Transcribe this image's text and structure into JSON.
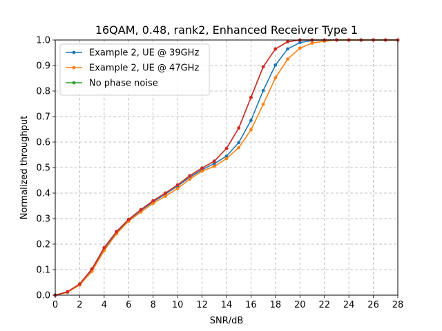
{
  "chart_data": {
    "type": "line",
    "title": "16QAM, 0.48, rank2, Enhanced Receiver Type 1",
    "xlabel": "SNR/dB",
    "ylabel": "Normalized throughput",
    "xlim": [
      0,
      28
    ],
    "ylim": [
      0,
      1.0
    ],
    "xticks": [
      0,
      2,
      4,
      6,
      8,
      10,
      12,
      14,
      16,
      18,
      20,
      22,
      24,
      26,
      28
    ],
    "yticks": [
      0.0,
      0.1,
      0.2,
      0.3,
      0.4,
      0.5,
      0.6,
      0.7,
      0.8,
      0.9,
      1.0
    ],
    "xtick_labels": [
      "0",
      "2",
      "4",
      "6",
      "8",
      "10",
      "12",
      "14",
      "16",
      "18",
      "20",
      "22",
      "24",
      "26",
      "28"
    ],
    "ytick_labels": [
      "0.0",
      "0.1",
      "0.2",
      "0.3",
      "0.4",
      "0.5",
      "0.6",
      "0.7",
      "0.8",
      "0.9",
      "1.0"
    ],
    "grid": true,
    "legend_position": "upper-left",
    "x": [
      0,
      1,
      2,
      3,
      4,
      5,
      6,
      7,
      8,
      9,
      10,
      11,
      12,
      13,
      14,
      15,
      16,
      17,
      18,
      19,
      20,
      21,
      22,
      23,
      24,
      25,
      26,
      27,
      28
    ],
    "series": [
      {
        "name": "Example 2, UE @ 39GHz",
        "color": "#1f77b4",
        "values": [
          0.0,
          0.012,
          0.042,
          0.1,
          0.182,
          0.245,
          0.294,
          0.332,
          0.366,
          0.396,
          0.428,
          0.462,
          0.492,
          0.515,
          0.545,
          0.598,
          0.685,
          0.802,
          0.902,
          0.965,
          0.99,
          0.998,
          1.0,
          1.0,
          1.0,
          1.0,
          1.0,
          1.0,
          1.0
        ]
      },
      {
        "name": "Example 2, UE @ 47GHz",
        "color": "#ff7f0e",
        "values": [
          0.0,
          0.011,
          0.04,
          0.093,
          0.175,
          0.24,
          0.29,
          0.326,
          0.36,
          0.388,
          0.418,
          0.455,
          0.486,
          0.505,
          0.535,
          0.578,
          0.648,
          0.748,
          0.852,
          0.925,
          0.968,
          0.988,
          0.995,
          1.0,
          1.0,
          1.0,
          1.0,
          1.0,
          1.0
        ]
      },
      {
        "name": "No phase noise",
        "color": "#2ca02c",
        "values": [
          0.0,
          0.013,
          0.044,
          0.103,
          0.186,
          0.249,
          0.297,
          0.335,
          0.37,
          0.4,
          0.432,
          0.468,
          0.498,
          0.525,
          0.575,
          0.655,
          0.775,
          0.895,
          0.965,
          0.993,
          1.0,
          1.0,
          1.0,
          1.0,
          1.0,
          1.0,
          1.0,
          1.0,
          1.0
        ]
      },
      {
        "name": "",
        "color": "#d62728",
        "values": [
          0.0,
          0.013,
          0.044,
          0.103,
          0.186,
          0.249,
          0.297,
          0.335,
          0.37,
          0.4,
          0.432,
          0.468,
          0.498,
          0.525,
          0.575,
          0.655,
          0.775,
          0.895,
          0.965,
          0.993,
          1.0,
          1.0,
          1.0,
          1.0,
          1.0,
          1.0,
          1.0,
          1.0,
          1.0
        ]
      }
    ]
  }
}
